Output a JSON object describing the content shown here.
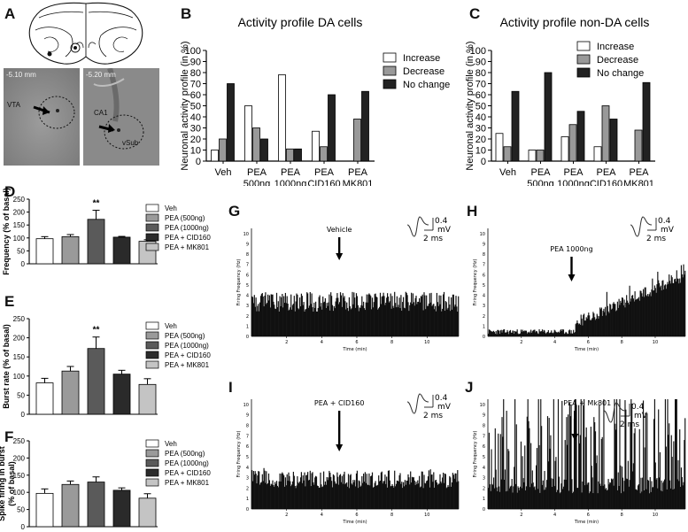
{
  "panels": {
    "A": "A",
    "B": "B",
    "C": "C",
    "D": "D",
    "E": "E",
    "F": "F",
    "G": "G",
    "H": "H",
    "I": "I",
    "J": "J"
  },
  "panel_a": {
    "slice_left": {
      "depth": "-5.10 mm",
      "label": "VTA"
    },
    "slice_right": {
      "depth": "-5.20 mm",
      "label": "CA1",
      "label2": "vSub"
    }
  },
  "legend_profile": [
    "Increase",
    "Decrease",
    "No change"
  ],
  "legend_groups": {
    "D": [
      "Veh",
      "PEA (500ng)",
      "PEA (1000ng)",
      "PEA + CID160",
      "PEA + MK801"
    ],
    "E": [
      "Veh",
      "PEA (500ng)",
      "PEA (1000ng)",
      "PEA + CID160",
      "PEA + MK801"
    ],
    "F": [
      "Veh",
      "PEA (500ng)",
      "PEA (1000ng)",
      "PEA + CID160",
      "PEA + MK801"
    ]
  },
  "colors": {
    "increase": "#ffffff",
    "decrease": "#999999",
    "no_change": "#222222",
    "veh": "#ffffff",
    "pea500": "#9a9a9a",
    "pea1000": "#5a5a5a",
    "cid160": "#2a2a2a",
    "mk801": "#c4c4c4"
  },
  "chart_data": [
    {
      "id": "B",
      "type": "bar",
      "title": "Activity profile DA cells",
      "xlabel": "",
      "ylabel": "Neuronal activity profile (in %)",
      "ylim": [
        0,
        100
      ],
      "yticks": [
        0,
        10,
        20,
        30,
        40,
        50,
        60,
        70,
        80,
        90,
        100
      ],
      "categories": [
        [
          "Veh"
        ],
        [
          "PEA",
          "500ng"
        ],
        [
          "PEA",
          "1000ng"
        ],
        [
          "PEA",
          "CID160"
        ],
        [
          "PEA",
          "MK801"
        ]
      ],
      "series": [
        {
          "name": "Increase",
          "values": [
            10,
            50,
            78,
            27,
            0
          ]
        },
        {
          "name": "Decrease",
          "values": [
            20,
            30,
            11,
            13,
            38
          ]
        },
        {
          "name": "No change",
          "values": [
            70,
            20,
            11,
            60,
            63
          ]
        }
      ]
    },
    {
      "id": "C",
      "type": "bar",
      "title": "Activity profile non-DA cells",
      "xlabel": "",
      "ylabel": "Neuronal activity profile (in %)",
      "ylim": [
        0,
        100
      ],
      "yticks": [
        0,
        10,
        20,
        30,
        40,
        50,
        60,
        70,
        80,
        90,
        100
      ],
      "categories": [
        [
          "Veh"
        ],
        [
          "PEA",
          "500ng"
        ],
        [
          "PEA",
          "1000ng"
        ],
        [
          "PEA",
          "CID160"
        ],
        [
          "PEA",
          "MK801"
        ]
      ],
      "series": [
        {
          "name": "Increase",
          "values": [
            25,
            10,
            22,
            13,
            0
          ]
        },
        {
          "name": "Decrease",
          "values": [
            13,
            10,
            33,
            50,
            28
          ]
        },
        {
          "name": "No change",
          "values": [
            63,
            80,
            45,
            38,
            71
          ]
        }
      ]
    },
    {
      "id": "D",
      "type": "bar",
      "ylabel": "Frequency (% of basal)",
      "ylim": [
        0,
        250
      ],
      "yticks": [
        0,
        50,
        100,
        150,
        200,
        250
      ],
      "categories": [
        "Veh",
        "PEA (500ng)",
        "PEA (1000ng)",
        "PEA + CID160",
        "PEA + MK801"
      ],
      "values": [
        97,
        105,
        172,
        103,
        87
      ],
      "errors": [
        8,
        8,
        35,
        3,
        6
      ],
      "annotations": [
        {
          "index": 2,
          "text": "**"
        }
      ]
    },
    {
      "id": "E",
      "type": "bar",
      "ylabel": "Burst rate (% of basal)",
      "ylim": [
        0,
        250
      ],
      "yticks": [
        0,
        50,
        100,
        150,
        200,
        250
      ],
      "categories": [
        "Veh",
        "PEA (500ng)",
        "PEA (1000ng)",
        "PEA + CID160",
        "PEA + MK801"
      ],
      "values": [
        82,
        113,
        172,
        105,
        78
      ],
      "errors": [
        12,
        12,
        30,
        10,
        15
      ],
      "annotations": [
        {
          "index": 2,
          "text": "**"
        }
      ]
    },
    {
      "id": "F",
      "type": "bar",
      "ylabel": "Spike firing in burst (% of basal)",
      "ylim": [
        0,
        250
      ],
      "yticks": [
        0,
        50,
        100,
        150,
        200,
        250
      ],
      "categories": [
        "Veh",
        "PEA (500ng)",
        "PEA (1000ng)",
        "PEA + CID160",
        "PEA + MK801"
      ],
      "values": [
        97,
        123,
        130,
        106,
        83
      ],
      "errors": [
        13,
        10,
        15,
        7,
        13
      ],
      "annotations": []
    },
    {
      "id": "G",
      "type": "bar",
      "subtype": "rate-histogram",
      "annotation": "Vehicle",
      "event_time_min": 5,
      "xlabel": "Time (min)",
      "ylabel": "Firing Frequency (Hz)",
      "ylim": [
        0,
        10.5
      ],
      "xlim": [
        0,
        11.8
      ],
      "yticks": [
        0,
        1,
        2,
        3,
        4,
        5,
        6,
        7,
        8,
        9,
        10
      ],
      "xticks": [
        2,
        4,
        6,
        8,
        10
      ],
      "scale_bar": {
        "amplitude": "0.4",
        "unit": "mV",
        "time": "2 ms"
      },
      "profile": {
        "shape": "flat",
        "base": 2.4,
        "mid": 3.7,
        "spread": 1.5,
        "max": 4.4
      }
    },
    {
      "id": "H",
      "type": "bar",
      "subtype": "rate-histogram",
      "annotation": "PEA 1000ng",
      "event_time_min": 5,
      "xlabel": "Time (min)",
      "ylabel": "Firing Frequency (Hz)",
      "ylim": [
        0,
        10.5
      ],
      "xlim": [
        0,
        11.8
      ],
      "yticks": [
        0,
        1,
        2,
        3,
        4,
        5,
        6,
        7,
        8,
        9,
        10
      ],
      "xticks": [
        2,
        4,
        6,
        8,
        10
      ],
      "scale_bar": {
        "amplitude": "0.4",
        "unit": "mV",
        "time": "2 ms"
      },
      "profile": {
        "shape": "ramp",
        "base": 0.2,
        "mid": 0.5,
        "start": 5.2,
        "end_mean": 5.8,
        "end_peak": 7.0
      }
    },
    {
      "id": "I",
      "type": "bar",
      "subtype": "rate-histogram",
      "annotation": "PEA + CID160",
      "event_time_min": 5,
      "xlabel": "Time (min)",
      "ylabel": "Firing Frequency (Hz)",
      "ylim": [
        0,
        10.5
      ],
      "xlim": [
        0,
        11.8
      ],
      "yticks": [
        0,
        1,
        2,
        3,
        4,
        5,
        6,
        7,
        8,
        9,
        10
      ],
      "xticks": [
        2,
        4,
        6,
        8,
        10
      ],
      "scale_bar": {
        "amplitude": "0.4",
        "unit": "mV",
        "time": "2 ms"
      },
      "profile": {
        "shape": "flat",
        "base": 2.0,
        "mid": 3.0,
        "spread": 1.0,
        "max": 4.0
      }
    },
    {
      "id": "J",
      "type": "bar",
      "subtype": "rate-histogram",
      "annotation": "PEA + Mk801",
      "event_time_min": 5.2,
      "xlabel": "Time (min)",
      "ylabel": "Firing Frequency (Hz)",
      "ylim": [
        0,
        10.5
      ],
      "xlim": [
        0,
        11.8
      ],
      "yticks": [
        0,
        1,
        2,
        3,
        4,
        5,
        6,
        7,
        8,
        9,
        10
      ],
      "xticks": [
        2,
        4,
        6,
        8,
        10
      ],
      "scale_bar": {
        "amplitude": "0.4",
        "unit": "mV",
        "time": "2 ms"
      },
      "profile": {
        "shape": "flat",
        "base": 1.5,
        "mid": 3.5,
        "spread": 3.0,
        "max": 10.0
      }
    }
  ]
}
